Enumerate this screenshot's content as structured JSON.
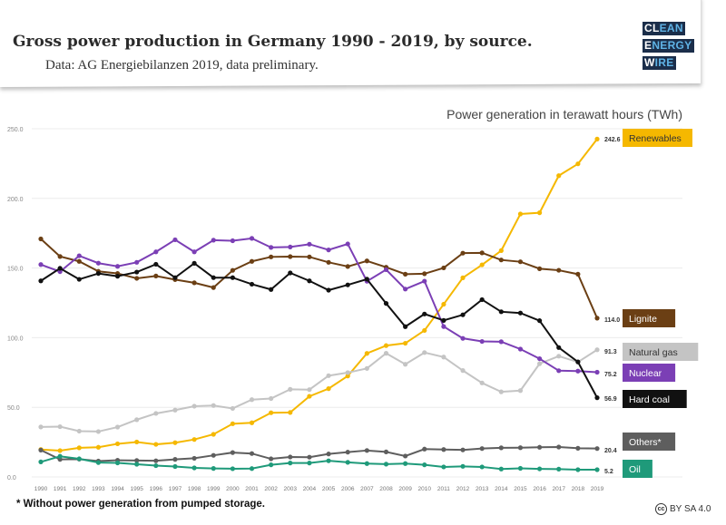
{
  "header": {
    "title": "Gross power production in Germany 1990 - 2019, by source.",
    "subtitle": "Data: AG Energiebilanzen 2019, data preliminary.",
    "logo_lines": [
      [
        "CL",
        "EAN"
      ],
      [
        "E",
        "NERGY"
      ],
      [
        "W",
        "IRE"
      ]
    ]
  },
  "footer": {
    "footnote": "* Without power generation from pumped storage.",
    "license": "BY SA 4.0",
    "license_icon": "cc-icon"
  },
  "chart_data": {
    "type": "line",
    "title": "Power generation in terawatt hours (TWh)",
    "xlabel": "",
    "ylabel": "",
    "ylim": [
      0,
      250
    ],
    "yticks": [
      "0.0",
      "50.0",
      "100.0",
      "150.0",
      "200.0",
      "250.0"
    ],
    "grid": true,
    "legend": "right, end-of-line labels",
    "x": [
      1990,
      1991,
      1992,
      1993,
      1994,
      1995,
      1996,
      1997,
      1998,
      1999,
      2000,
      2001,
      2002,
      2003,
      2004,
      2005,
      2006,
      2007,
      2008,
      2009,
      2010,
      2011,
      2012,
      2013,
      2014,
      2015,
      2016,
      2017,
      2018,
      2019
    ],
    "series": [
      {
        "name": "Renewables",
        "color": "#f5b800",
        "label_text": "#333333",
        "end_value": "242.6",
        "values": [
          19.7,
          18.9,
          20.9,
          21.3,
          23.8,
          25.1,
          23.4,
          24.6,
          26.9,
          30.6,
          38.2,
          38.9,
          46.1,
          46.3,
          57.9,
          63.4,
          72.5,
          88.7,
          94.3,
          96.0,
          105.2,
          124.0,
          143.0,
          152.3,
          162.5,
          188.8,
          189.7,
          216.3,
          224.8,
          242.6
        ]
      },
      {
        "name": "Lignite",
        "color": "#6b3f14",
        "label_text": "#ffffff",
        "end_value": "114.0",
        "values": [
          170.9,
          158.3,
          154.8,
          147.6,
          146.1,
          142.6,
          144.3,
          141.7,
          139.4,
          136.0,
          148.3,
          154.8,
          158.0,
          158.2,
          158.0,
          154.1,
          151.1,
          155.1,
          150.6,
          145.6,
          145.9,
          150.1,
          160.7,
          160.9,
          155.8,
          154.5,
          149.5,
          148.4,
          145.6,
          114.0
        ]
      },
      {
        "name": "Natural gas",
        "color": "#c4c4c4",
        "label_text": "#333333",
        "end_value": "91.3",
        "values": [
          35.9,
          36.1,
          32.9,
          32.6,
          35.8,
          41.1,
          45.6,
          48.0,
          50.8,
          51.3,
          49.2,
          55.5,
          56.3,
          62.9,
          62.7,
          72.7,
          74.9,
          77.9,
          88.8,
          80.9,
          89.3,
          86.1,
          76.4,
          67.5,
          61.1,
          62.0,
          81.3,
          86.7,
          82.5,
          91.3
        ]
      },
      {
        "name": "Nuclear",
        "color": "#7b3fb5",
        "label_text": "#ffffff",
        "end_value": "75.2",
        "values": [
          152.5,
          147.4,
          158.8,
          153.5,
          151.2,
          154.1,
          161.6,
          170.3,
          161.6,
          170.0,
          169.6,
          171.3,
          164.8,
          165.1,
          167.1,
          163.0,
          167.3,
          140.5,
          148.8,
          134.9,
          140.6,
          108.0,
          99.5,
          97.3,
          97.1,
          91.8,
          84.9,
          76.3,
          76.0,
          75.2
        ]
      },
      {
        "name": "Hard coal",
        "color": "#111111",
        "label_text": "#ffffff",
        "end_value": "56.9",
        "values": [
          140.8,
          149.8,
          141.9,
          146.1,
          144.1,
          147.1,
          152.7,
          143.1,
          153.4,
          143.1,
          143.1,
          138.4,
          134.6,
          146.5,
          140.8,
          134.1,
          137.9,
          142.0,
          124.6,
          107.9,
          117.0,
          112.4,
          116.4,
          127.3,
          118.6,
          117.7,
          112.2,
          92.9,
          82.6,
          56.9
        ]
      },
      {
        "name": "Others*",
        "color": "#5e5e5e",
        "label_text": "#ffffff",
        "end_value": "20.4",
        "values": [
          19.3,
          12.6,
          12.8,
          11.4,
          12.0,
          11.8,
          11.6,
          12.6,
          13.4,
          15.5,
          17.5,
          16.8,
          13.0,
          14.3,
          14.2,
          16.5,
          17.8,
          19.0,
          18.0,
          15.0,
          20.0,
          19.7,
          19.4,
          20.4,
          20.9,
          21.0,
          21.3,
          21.5,
          20.6,
          20.4
        ]
      },
      {
        "name": "Oil",
        "color": "#1f9a7a",
        "label_text": "#ffffff",
        "end_value": "5.2",
        "values": [
          10.8,
          14.8,
          13.0,
          10.3,
          10.1,
          9.1,
          8.1,
          7.5,
          6.5,
          6.1,
          5.9,
          6.0,
          8.7,
          10.0,
          10.0,
          11.6,
          10.5,
          9.6,
          9.2,
          9.6,
          8.7,
          7.2,
          7.6,
          7.2,
          5.7,
          6.2,
          5.8,
          5.6,
          5.2,
          5.2
        ]
      }
    ]
  }
}
